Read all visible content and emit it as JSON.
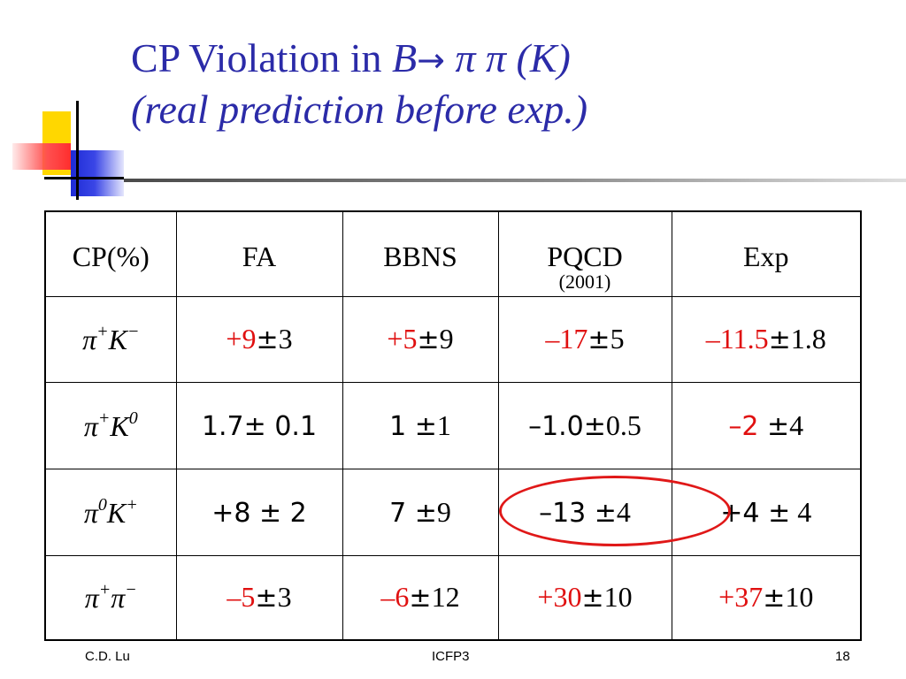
{
  "slide": {
    "title_line1_prefix": "CP Violation in ",
    "title_B": "B",
    "title_arrow": "→",
    "title_particles": " π π (K)",
    "title_line2": "(real prediction before exp.)"
  },
  "table": {
    "headers": [
      "CP(%)",
      "FA",
      "BBNS",
      "PQCD",
      "Exp"
    ],
    "pqcd_sub": "(2001)",
    "rows": [
      {
        "label": {
          "p": "π",
          "p_sup": "+",
          "k": "K",
          "k_sup": "−"
        },
        "cells": [
          {
            "v": "+9",
            "pm": "±",
            "e": "3"
          },
          {
            "v": "+5",
            "pm": "±",
            "e": "9"
          },
          {
            "v": "–17",
            "pm": "±",
            "e": "5"
          },
          {
            "v": "–11.5",
            "pm": "±",
            "e": "1.8"
          }
        ]
      },
      {
        "label": {
          "p": "π",
          "p_sup": "+",
          "k": "K",
          "k_sup": "0"
        },
        "cells": [
          {
            "v": "1.7",
            "pm": "±",
            "e": " 0.1"
          },
          {
            "v": "1 ",
            "pm": "±",
            "e": "1"
          },
          {
            "v": "–1.0",
            "pm": "±",
            "e": "0.5"
          },
          {
            "v": "–2 ",
            "pm": "±",
            "e": "4"
          }
        ]
      },
      {
        "label": {
          "p": "π",
          "p_sup": "0",
          "k": "K",
          "k_sup": "+"
        },
        "cells": [
          {
            "v": "+8 ",
            "pm": "±",
            "e": " 2"
          },
          {
            "v": "7 ",
            "pm": "±",
            "e": "9"
          },
          {
            "v": "–13 ",
            "pm": "±",
            "e": "4"
          },
          {
            "v": "+4 ",
            "pm": "±",
            "e": " 4"
          }
        ]
      },
      {
        "label": {
          "p": "π",
          "p_sup": "+",
          "k": "π",
          "k_sup": "−"
        },
        "cells": [
          {
            "v": "–5",
            "pm": "±",
            "e": "3"
          },
          {
            "v": "–6",
            "pm": "±",
            "e": "12"
          },
          {
            "v": "+30",
            "pm": "±",
            "e": "10"
          },
          {
            "v": "+37",
            "pm": "±",
            "e": "10"
          }
        ]
      }
    ]
  },
  "footer": {
    "left": "C.D. Lu",
    "center": "ICFP3",
    "page": "18"
  },
  "colors": {
    "title": "#2b2ba8",
    "highlight": "#e01010"
  }
}
